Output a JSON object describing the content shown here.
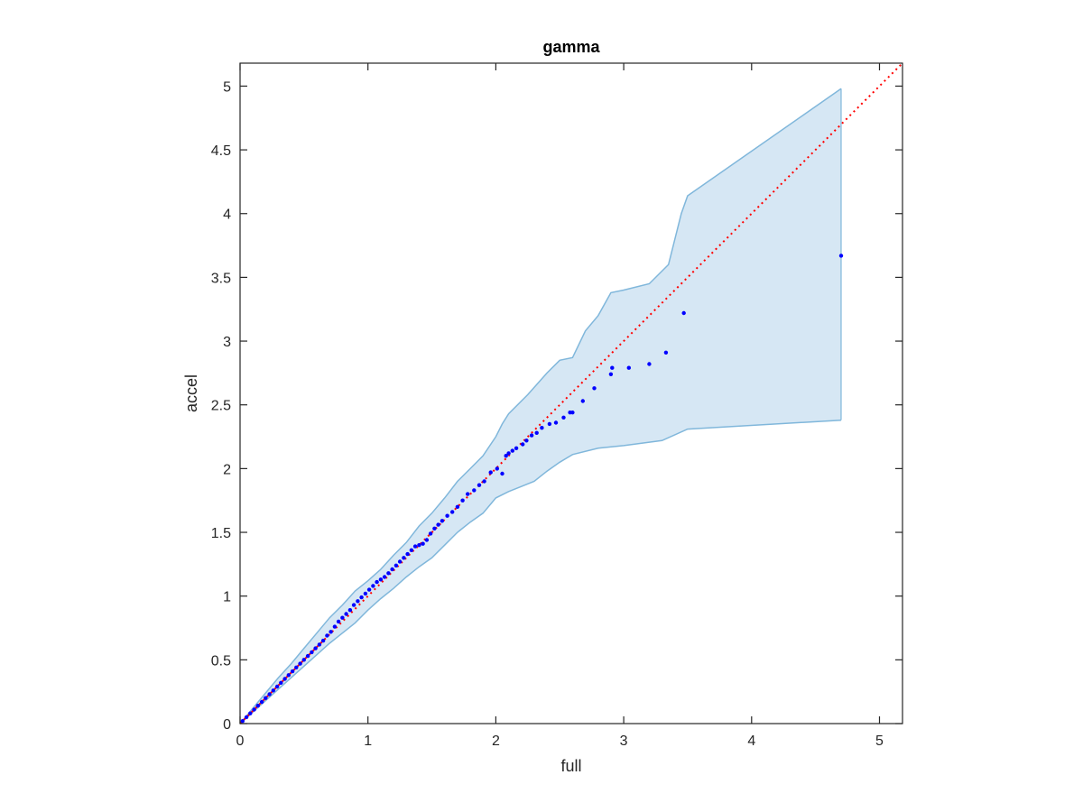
{
  "chart_data": {
    "type": "scatter",
    "title": "gamma",
    "xlabel": "full",
    "ylabel": "accel",
    "xlim": [
      0,
      5.18
    ],
    "ylim": [
      0,
      5.18
    ],
    "xticks": [
      0,
      1,
      2,
      3,
      4,
      5
    ],
    "xtick_labels": [
      "0",
      "1",
      "2",
      "3",
      "4",
      "5"
    ],
    "yticks": [
      0,
      0.5,
      1,
      1.5,
      2,
      2.5,
      3,
      3.5,
      4,
      4.5,
      5
    ],
    "ytick_labels": [
      "0",
      "0.5",
      "1",
      "1.5",
      "2",
      "2.5",
      "3",
      "3.5",
      "4",
      "4.5",
      "5"
    ],
    "grid": false,
    "colors": {
      "points": "#0000ff",
      "reference_line": "#ff0000",
      "band_fill": "#d6e7f4",
      "band_edge": "#80b7db",
      "axes": "#262626"
    },
    "reference_line": {
      "x": [
        0,
        5.18
      ],
      "y": [
        0,
        5.18
      ],
      "style": "dotted"
    },
    "band": {
      "upper": [
        [
          0,
          0
        ],
        [
          0.1,
          0.12
        ],
        [
          0.2,
          0.24
        ],
        [
          0.3,
          0.36
        ],
        [
          0.4,
          0.47
        ],
        [
          0.5,
          0.59
        ],
        [
          0.6,
          0.71
        ],
        [
          0.7,
          0.83
        ],
        [
          0.8,
          0.93
        ],
        [
          0.9,
          1.04
        ],
        [
          1.0,
          1.12
        ],
        [
          1.1,
          1.21
        ],
        [
          1.2,
          1.32
        ],
        [
          1.3,
          1.42
        ],
        [
          1.4,
          1.55
        ],
        [
          1.5,
          1.65
        ],
        [
          1.6,
          1.77
        ],
        [
          1.7,
          1.9
        ],
        [
          1.8,
          2.0
        ],
        [
          1.9,
          2.1
        ],
        [
          2.0,
          2.25
        ],
        [
          2.05,
          2.35
        ],
        [
          2.1,
          2.43
        ],
        [
          2.25,
          2.58
        ],
        [
          2.4,
          2.75
        ],
        [
          2.5,
          2.85
        ],
        [
          2.6,
          2.87
        ],
        [
          2.7,
          3.08
        ],
        [
          2.8,
          3.2
        ],
        [
          2.9,
          3.38
        ],
        [
          3.0,
          3.4
        ],
        [
          3.2,
          3.45
        ],
        [
          3.35,
          3.6
        ],
        [
          3.45,
          4.0
        ],
        [
          3.5,
          4.14
        ],
        [
          4.7,
          4.98
        ]
      ],
      "lower": [
        [
          0,
          0
        ],
        [
          0.1,
          0.09
        ],
        [
          0.2,
          0.18
        ],
        [
          0.3,
          0.27
        ],
        [
          0.4,
          0.36
        ],
        [
          0.5,
          0.45
        ],
        [
          0.6,
          0.54
        ],
        [
          0.7,
          0.63
        ],
        [
          0.8,
          0.71
        ],
        [
          0.9,
          0.79
        ],
        [
          1.0,
          0.89
        ],
        [
          1.1,
          0.98
        ],
        [
          1.2,
          1.06
        ],
        [
          1.3,
          1.15
        ],
        [
          1.4,
          1.23
        ],
        [
          1.5,
          1.3
        ],
        [
          1.6,
          1.4
        ],
        [
          1.7,
          1.5
        ],
        [
          1.8,
          1.58
        ],
        [
          1.9,
          1.65
        ],
        [
          2.0,
          1.77
        ],
        [
          2.1,
          1.82
        ],
        [
          2.2,
          1.86
        ],
        [
          2.3,
          1.9
        ],
        [
          2.4,
          1.98
        ],
        [
          2.5,
          2.05
        ],
        [
          2.6,
          2.11
        ],
        [
          2.8,
          2.16
        ],
        [
          3.0,
          2.18
        ],
        [
          3.3,
          2.22
        ],
        [
          3.5,
          2.31
        ],
        [
          4.7,
          2.38
        ]
      ]
    },
    "series": [
      {
        "x": [
          0.02,
          0.05,
          0.08,
          0.11,
          0.14,
          0.17,
          0.2,
          0.23,
          0.26,
          0.29,
          0.32,
          0.35,
          0.38,
          0.41,
          0.44,
          0.47,
          0.5,
          0.53,
          0.56,
          0.59,
          0.62,
          0.65,
          0.68,
          0.71,
          0.74,
          0.77,
          0.8,
          0.83,
          0.86,
          0.89,
          0.92,
          0.95,
          0.98,
          1.01,
          1.04,
          1.07,
          1.1,
          1.13,
          1.16,
          1.19,
          1.22,
          1.25,
          1.28,
          1.31,
          1.34,
          1.37,
          1.4,
          1.43,
          1.46,
          1.49,
          1.52,
          1.55,
          1.58,
          1.62,
          1.66,
          1.7,
          1.74,
          1.78,
          1.83,
          1.87,
          1.91,
          1.96,
          2.01,
          2.05,
          2.08,
          2.1,
          2.13,
          2.16,
          2.21,
          2.24,
          2.28,
          2.32,
          2.36,
          2.42,
          2.47,
          2.53,
          2.58,
          2.6,
          2.68,
          2.77,
          2.9,
          2.91,
          3.04,
          3.2,
          3.33,
          3.47,
          4.7
        ],
        "y": [
          0.02,
          0.05,
          0.08,
          0.11,
          0.14,
          0.17,
          0.2,
          0.23,
          0.26,
          0.29,
          0.32,
          0.35,
          0.38,
          0.41,
          0.44,
          0.47,
          0.5,
          0.53,
          0.56,
          0.59,
          0.62,
          0.65,
          0.69,
          0.72,
          0.76,
          0.8,
          0.83,
          0.86,
          0.89,
          0.93,
          0.96,
          0.99,
          1.02,
          1.05,
          1.08,
          1.11,
          1.13,
          1.15,
          1.18,
          1.21,
          1.24,
          1.27,
          1.3,
          1.33,
          1.36,
          1.39,
          1.4,
          1.41,
          1.44,
          1.49,
          1.53,
          1.56,
          1.59,
          1.63,
          1.66,
          1.7,
          1.75,
          1.8,
          1.83,
          1.87,
          1.9,
          1.97,
          2.0,
          1.96,
          2.1,
          2.12,
          2.14,
          2.16,
          2.19,
          2.22,
          2.26,
          2.28,
          2.32,
          2.35,
          2.36,
          2.4,
          2.44,
          2.44,
          2.53,
          2.63,
          2.74,
          2.79,
          2.79,
          2.82,
          2.91,
          3.22,
          3.67
        ]
      }
    ]
  }
}
